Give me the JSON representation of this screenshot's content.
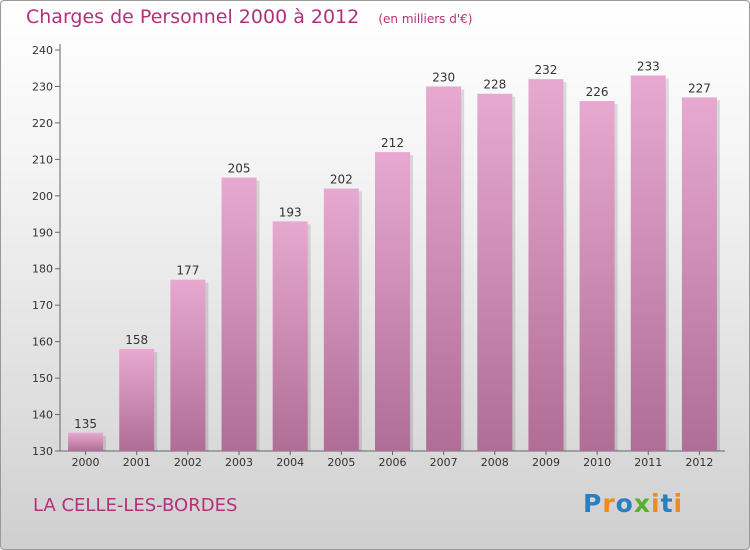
{
  "header": {
    "title": "Charges de Personnel 2000 à 2012",
    "subtitle": "(en milliers d'€)"
  },
  "commune": "LA CELLE-LES-BORDES",
  "logo": {
    "text": "Proxiti",
    "parts": [
      "P",
      "r",
      "o",
      "x",
      "i",
      "t",
      "i"
    ]
  },
  "colors": {
    "title": "#b3307a",
    "bar_top": "#e7a9d0",
    "bar_bottom": "#b06d95"
  },
  "chart_data": {
    "type": "bar",
    "categories": [
      "2000",
      "2001",
      "2002",
      "2003",
      "2004",
      "2005",
      "2006",
      "2007",
      "2008",
      "2009",
      "2010",
      "2011",
      "2012"
    ],
    "values": [
      135,
      158,
      177,
      205,
      193,
      202,
      212,
      230,
      228,
      232,
      226,
      233,
      227
    ],
    "ylim": [
      130,
      240
    ],
    "yticks": [
      130,
      140,
      150,
      160,
      170,
      180,
      190,
      200,
      210,
      220,
      230,
      240
    ],
    "grid": false,
    "data_labels": true
  }
}
